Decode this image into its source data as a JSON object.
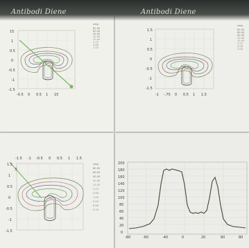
{
  "labels": {
    "panel1": "Antibodi Diene",
    "panel2": "Antibodi Diene"
  },
  "colors": {
    "pen": "#7fb46c",
    "plot_line": "#3f4a32"
  }
}
